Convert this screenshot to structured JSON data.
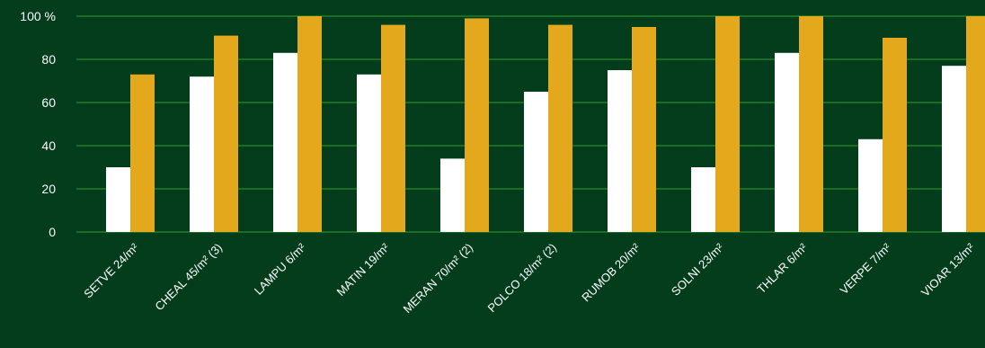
{
  "chart_data": {
    "type": "bar",
    "categories": [
      "SETVE 24/m²",
      "CHEAL 45/m² (3)",
      "LAMPU 6/m²",
      "MATIN 19/m²",
      "MERAN 70/m² (2)",
      "POLCO 18/m² (2)",
      "RUMOB 20/m²",
      "SOLNI 23/m²",
      "THLAR 6/m²",
      "VERPE 7/m²",
      "VIOAR 13/m²"
    ],
    "series": [
      {
        "values": [
          30,
          72,
          83,
          73,
          34,
          65,
          75,
          30,
          83,
          43,
          77
        ],
        "color": "#ffffff"
      },
      {
        "values": [
          73,
          91,
          100,
          96,
          99,
          96,
          95,
          100,
          100,
          90,
          100
        ],
        "color": "#e3a81b"
      }
    ],
    "yticks": [
      {
        "value": 0,
        "label": "0"
      },
      {
        "value": 20,
        "label": "20"
      },
      {
        "value": 40,
        "label": "40"
      },
      {
        "value": 60,
        "label": "60"
      },
      {
        "value": 80,
        "label": "80"
      },
      {
        "value": 100,
        "label": "100 %"
      }
    ],
    "ylim": [
      0,
      100
    ],
    "grid": true,
    "gridline_color": "#2f9a2a",
    "background_color": "#033d1c",
    "title": "",
    "xlabel": "",
    "ylabel": ""
  }
}
